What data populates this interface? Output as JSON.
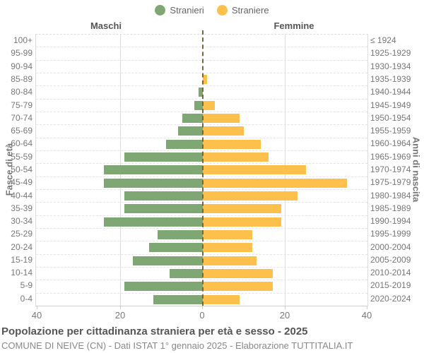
{
  "legend": {
    "males_label": "Stranieri",
    "females_label": "Straniere"
  },
  "headers": {
    "males": "Maschi",
    "females": "Femmine"
  },
  "axes": {
    "left_title": "Fasce di età",
    "right_title": "Anni di nascita",
    "x_ticks": [
      "40",
      "20",
      "0",
      "20",
      "40"
    ]
  },
  "footer": {
    "title": "Popolazione per cittadinanza straniera per età e sesso - 2025",
    "subtitle": "COMUNE DI NEIVE (CN) - Dati ISTAT 1° gennaio 2025 - Elaborazione TUTTITALIA.IT"
  },
  "colors": {
    "males_bar": "#7FA773",
    "females_bar": "#FDC04D",
    "grid": "#DDDDDD",
    "center_line": "#6E6A39",
    "text": "#777777",
    "title_text": "#555555"
  },
  "chart_data": {
    "type": "bar",
    "subtype": "population-pyramid",
    "title": "Popolazione per cittadinanza straniera per età e sesso - 2025",
    "xlabel_ticks": [
      40,
      20,
      0,
      20,
      40
    ],
    "x_range_per_side": [
      0,
      40
    ],
    "ylabel_left": "Fasce di età",
    "ylabel_right": "Anni di nascita",
    "grid": true,
    "legend_position": "top-center",
    "age_groups": [
      "100+",
      "95-99",
      "90-94",
      "85-89",
      "80-84",
      "75-79",
      "70-74",
      "65-69",
      "60-64",
      "55-59",
      "50-54",
      "45-49",
      "40-44",
      "35-39",
      "30-34",
      "25-29",
      "20-24",
      "15-19",
      "10-14",
      "5-9",
      "0-4"
    ],
    "birth_years": [
      "≤ 1924",
      "1925-1929",
      "1930-1934",
      "1935-1939",
      "1940-1944",
      "1945-1949",
      "1950-1954",
      "1955-1959",
      "1960-1964",
      "1965-1969",
      "1970-1974",
      "1975-1979",
      "1980-1984",
      "1985-1989",
      "1990-1994",
      "1995-1999",
      "2000-2004",
      "2005-2009",
      "2010-2014",
      "2015-2019",
      "2020-2024"
    ],
    "series": [
      {
        "name": "Stranieri",
        "side": "left",
        "values": [
          0,
          0,
          0,
          0,
          1,
          2,
          5,
          6,
          9,
          19,
          24,
          24,
          19,
          19,
          24,
          11,
          13,
          17,
          8,
          19,
          12
        ]
      },
      {
        "name": "Straniere",
        "side": "right",
        "values": [
          0,
          0,
          0,
          1,
          0,
          3,
          9,
          10,
          14,
          16,
          25,
          35,
          23,
          19,
          19,
          12,
          12,
          13,
          17,
          17,
          9
        ]
      }
    ]
  }
}
